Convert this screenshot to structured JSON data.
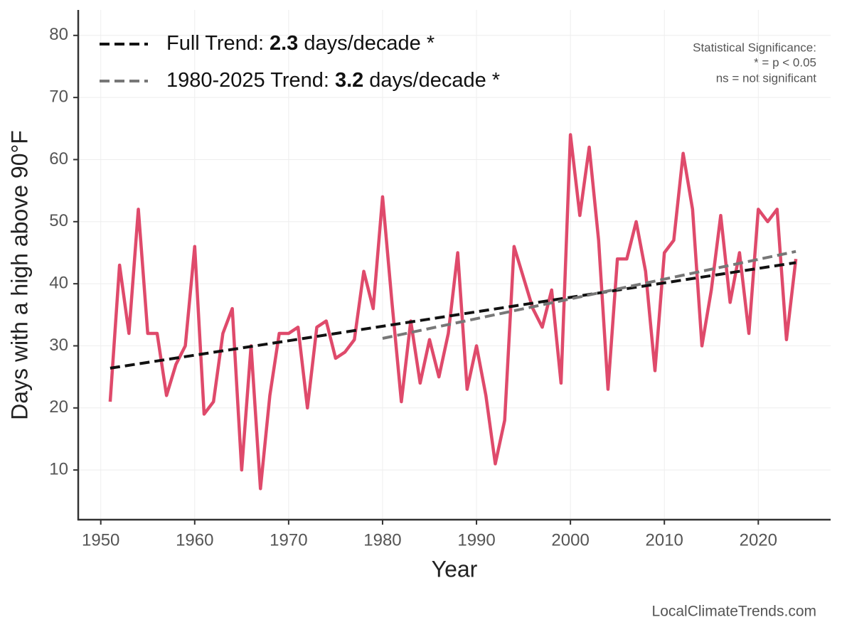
{
  "chart_data": {
    "type": "line",
    "xlabel": "Year",
    "ylabel": "Days with a high above 90°F",
    "x": [
      1951,
      1952,
      1953,
      1954,
      1955,
      1956,
      1957,
      1958,
      1959,
      1960,
      1961,
      1962,
      1963,
      1964,
      1965,
      1966,
      1967,
      1968,
      1969,
      1970,
      1971,
      1972,
      1973,
      1974,
      1975,
      1976,
      1977,
      1978,
      1979,
      1980,
      1981,
      1982,
      1983,
      1984,
      1985,
      1986,
      1987,
      1988,
      1989,
      1990,
      1991,
      1992,
      1993,
      1994,
      1995,
      1996,
      1997,
      1998,
      1999,
      2000,
      2001,
      2002,
      2003,
      2004,
      2005,
      2006,
      2007,
      2008,
      2009,
      2010,
      2011,
      2012,
      2013,
      2014,
      2015,
      2016,
      2017,
      2018,
      2019,
      2020,
      2021,
      2022,
      2023,
      2024
    ],
    "series": [
      {
        "color": "#df4a6b",
        "values": [
          21,
          43,
          32,
          52,
          32,
          32,
          22,
          27,
          30,
          46,
          19,
          21,
          32,
          36,
          10,
          30,
          7,
          22,
          32,
          32,
          33,
          20,
          33,
          34,
          28,
          29,
          31,
          42,
          36,
          54,
          37,
          21,
          34,
          24,
          31,
          25,
          32,
          45,
          23,
          30,
          22,
          11,
          18,
          46,
          41,
          36,
          33,
          39,
          24,
          64,
          51,
          62,
          47,
          23,
          44,
          44,
          50,
          42,
          26,
          45,
          47,
          61,
          52,
          30,
          39,
          51,
          37,
          45,
          32,
          52,
          50,
          52,
          31,
          44
        ]
      },
      {
        "name": "Full Trend:",
        "slope": 2.3,
        "slope_unit": "days/decade *",
        "color": "#111111",
        "dash": true,
        "x": [
          1951,
          2024
        ],
        "values": [
          26.4,
          43.4
        ]
      },
      {
        "name": "1980-2025 Trend:",
        "slope": 3.2,
        "slope_unit": "days/decade *",
        "color": "#777777",
        "dash": true,
        "x": [
          1980,
          2024
        ],
        "values": [
          31.2,
          45.2
        ]
      }
    ],
    "xlim": [
      1947.6,
      2027.7
    ],
    "ylim": [
      2,
      84.1
    ],
    "xticks": [
      1950,
      1960,
      1970,
      1980,
      1990,
      2000,
      2010,
      2020
    ],
    "yticks": [
      10,
      20,
      30,
      40,
      50,
      60,
      70,
      80
    ],
    "grid": true,
    "annotation": [
      "Statistical Significance:",
      "* = p < 0.05",
      "ns = not significant"
    ],
    "source": "LocalClimateTrends.com"
  }
}
